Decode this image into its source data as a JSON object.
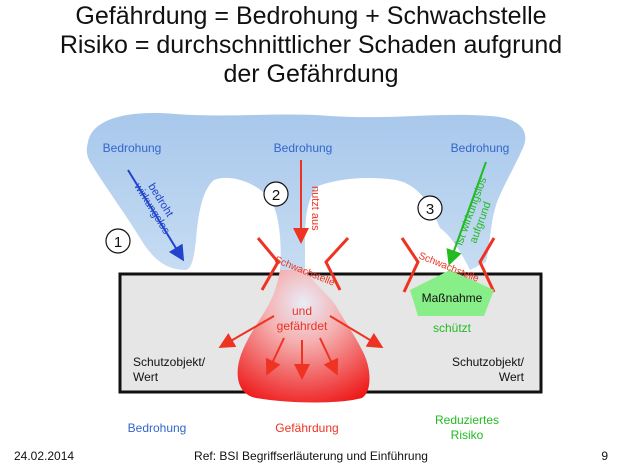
{
  "title": {
    "line1": "Gefährdung = Bedrohung + Schwachstelle",
    "line2": "Risiko = durchschnittlicher Schaden aufgrund",
    "line3": "der Gefährdung"
  },
  "diagram": {
    "threat_left": "Bedrohung",
    "threat_mid": "Bedrohung",
    "threat_right": "Bedrohung",
    "circle1": "1",
    "circle2": "2",
    "circle3": "3",
    "arrow1_line1": "bedroht",
    "arrow1_line2": "wirkungslos",
    "arrow2_label": "nutzt aus",
    "arrow3_line1": "ist wirkungslos",
    "arrow3_line2": "aufgrund",
    "weakness_mid": "Schwachstelle",
    "weakness_right": "Schwachstelle",
    "gefaehrdet_line1": "und",
    "gefaehrdet_line2": "gefährdet",
    "massnahme": "Maßnahme",
    "schuetzt": "schützt",
    "object_left_line1": "Schutzobjekt/",
    "object_left_line2": "Wert",
    "object_right_line1": "Schutzobjekt/",
    "object_right_line2": "Wert",
    "bottom_left": "Bedrohung",
    "bottom_mid": "Gefährdung",
    "bottom_right_line1": "Reduziertes",
    "bottom_right_line2": "Risiko",
    "colors": {
      "threat": "#aaccee",
      "arrow_blue": "#2244cc",
      "arrow_red": "#ee3322",
      "massnahme": "#88ee88",
      "green_text": "#22bb22",
      "box_fill": "#e6e6e6"
    }
  },
  "footer": {
    "date": "24.02.2014",
    "ref": "Ref: BSI Begriffserläuterung und Einführung",
    "page": "9"
  }
}
